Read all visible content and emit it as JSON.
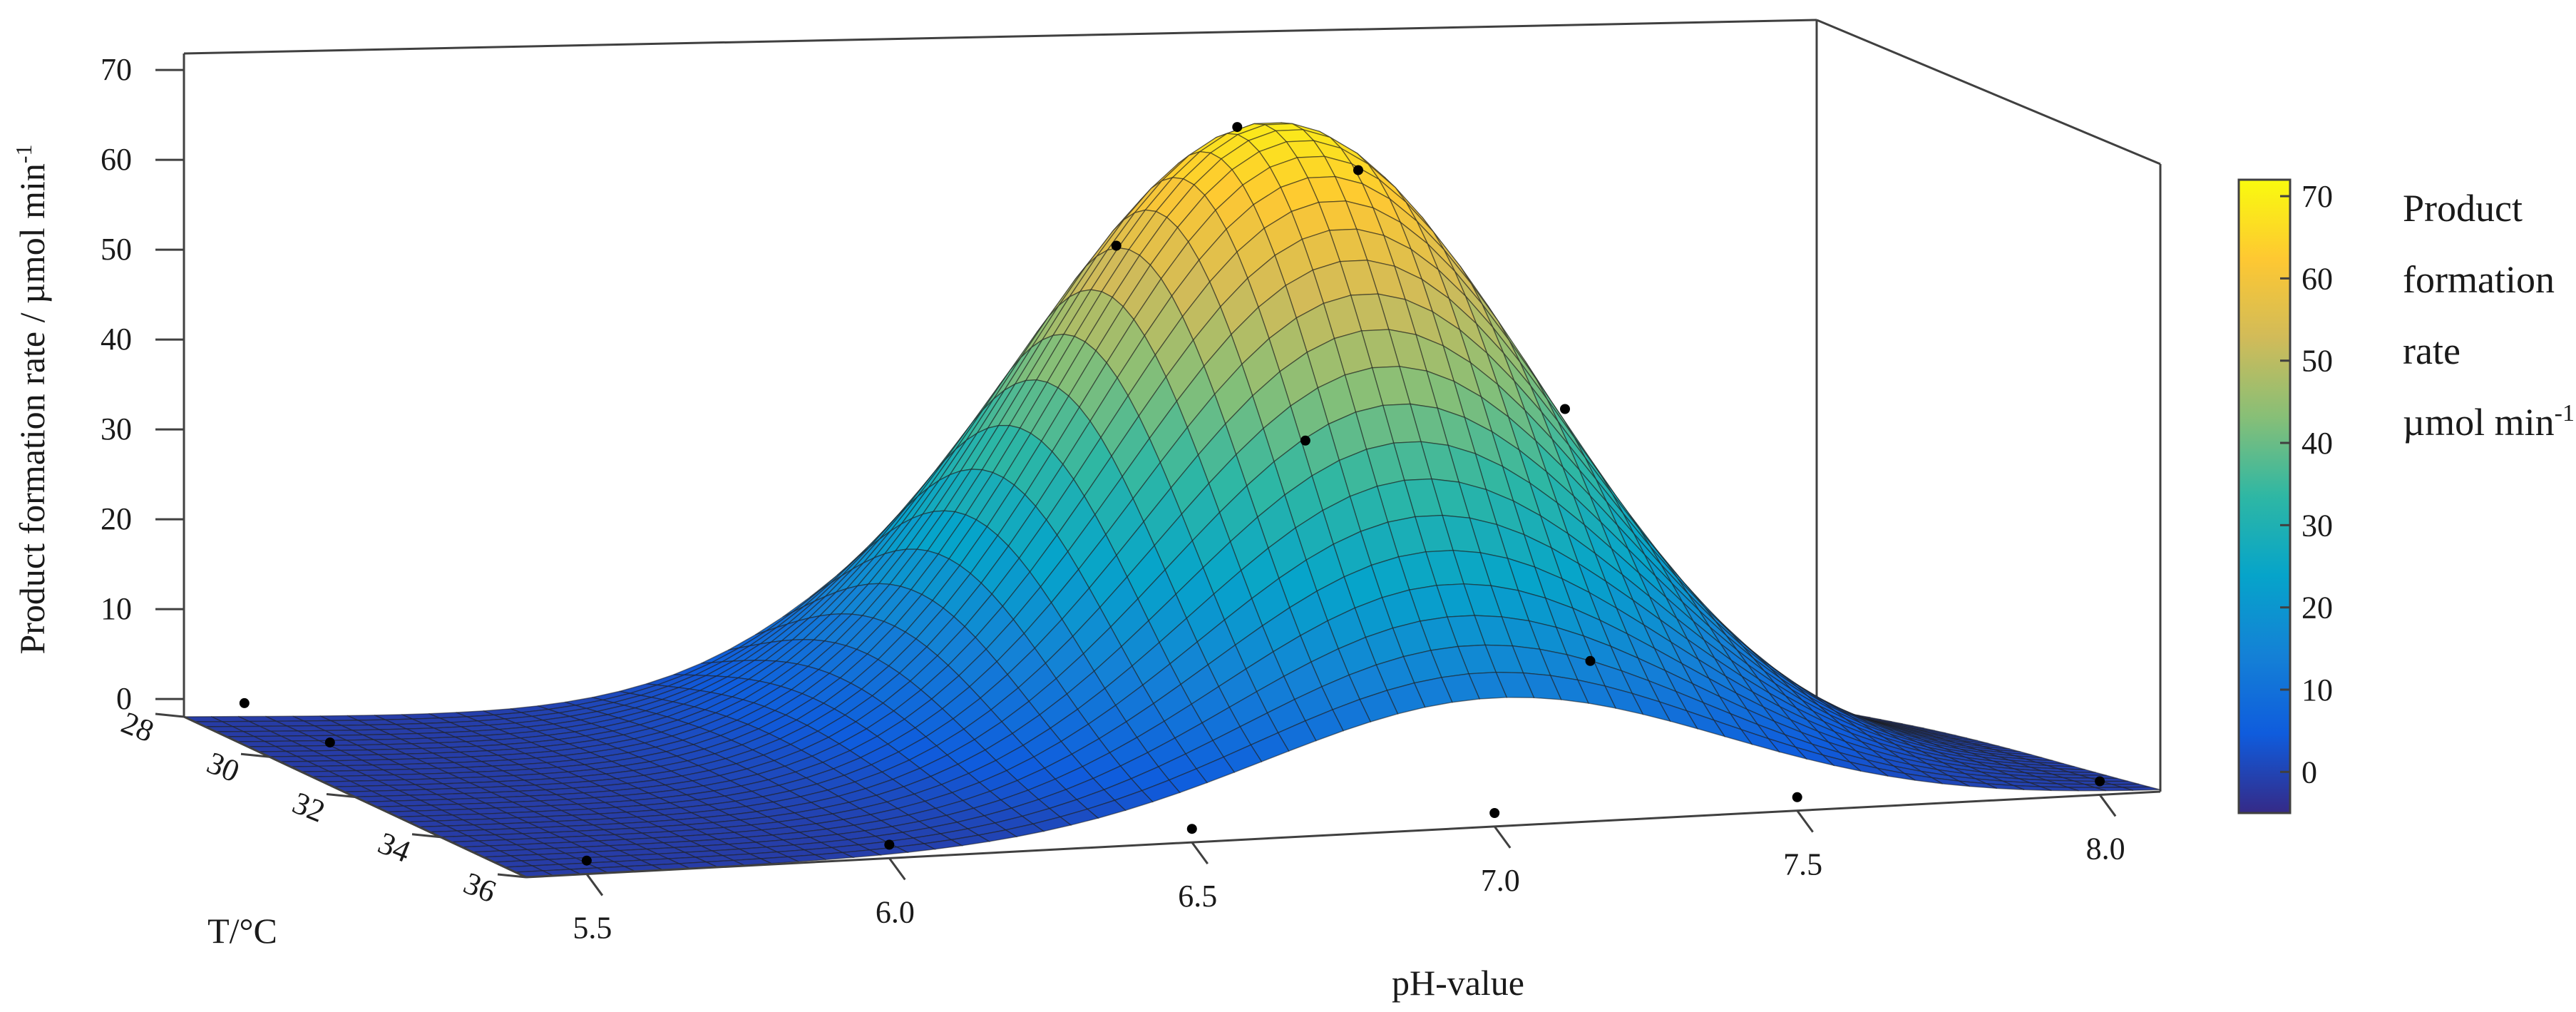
{
  "chart_data": {
    "type": "surface3d",
    "title": "",
    "xlabel": "pH-value",
    "ylabel": "T/°C",
    "zlabel_parts": {
      "main": "Product formation rate / µmol min",
      "sup": "-1"
    },
    "x_ticks": [
      "5.5",
      "6.0",
      "6.5",
      "7.0",
      "7.5",
      "8.0"
    ],
    "y_ticks": [
      "28",
      "30",
      "32",
      "34",
      "36"
    ],
    "z_ticks": [
      "0",
      "10",
      "20",
      "30",
      "40",
      "50",
      "60",
      "70"
    ],
    "xlim": [
      5.4,
      8.1
    ],
    "ylim": [
      28,
      36
    ],
    "zlim": [
      -2,
      72
    ],
    "surface_model": {
      "form": "gaussian",
      "amplitude": 70.5,
      "x_center": 7.0,
      "x_sigma": 0.38,
      "y_center": 31.0,
      "y_sigma": 2.8,
      "offset": -1.5
    },
    "colormap": "parula",
    "data_points": [
      {
        "ph": 5.5,
        "t": 36,
        "rate": 0
      },
      {
        "ph": 6.0,
        "t": 36,
        "rate": 0
      },
      {
        "ph": 6.5,
        "t": 36,
        "rate": 0
      },
      {
        "ph": 7.0,
        "t": 36,
        "rate": 0
      },
      {
        "ph": 7.5,
        "t": 36,
        "rate": 0
      },
      {
        "ph": 8.0,
        "t": 36,
        "rate": 0
      },
      {
        "ph": 5.5,
        "t": 30,
        "rate": 0
      },
      {
        "ph": 5.5,
        "t": 28,
        "rate": 0
      },
      {
        "ph": 6.8,
        "t": 30,
        "rate": 54
      },
      {
        "ph": 7.0,
        "t": 30,
        "rate": 67
      },
      {
        "ph": 7.2,
        "t": 30,
        "rate": 62
      },
      {
        "ph": 6.9,
        "t": 33,
        "rate": 37
      },
      {
        "ph": 7.4,
        "t": 32,
        "rate": 38
      },
      {
        "ph": 7.3,
        "t": 34,
        "rate": 13
      }
    ],
    "colorbar": {
      "ticks": [
        "0",
        "10",
        "20",
        "30",
        "40",
        "50",
        "60",
        "70"
      ],
      "range": [
        -5,
        72
      ],
      "title_lines": [
        "Product",
        "formation",
        "rate"
      ],
      "unit_main": "µmol min",
      "unit_sup": "-1"
    }
  }
}
